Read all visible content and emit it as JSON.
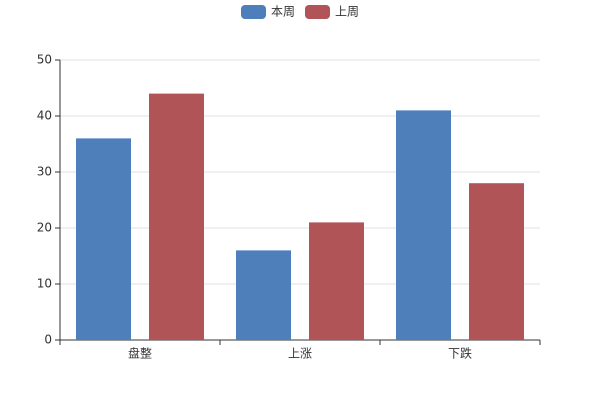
{
  "chart_data": {
    "type": "bar",
    "categories": [
      "盘整",
      "上涨",
      "下跌"
    ],
    "series": [
      {
        "name": "本周",
        "color": "#4e7fbb",
        "values": [
          36,
          16,
          41
        ]
      },
      {
        "name": "上周",
        "color": "#b05457",
        "values": [
          44,
          21,
          28
        ]
      }
    ],
    "ylim": [
      0,
      50
    ],
    "yticks": [
      0,
      10,
      20,
      30,
      40,
      50
    ],
    "grid": true,
    "legend": "top"
  }
}
